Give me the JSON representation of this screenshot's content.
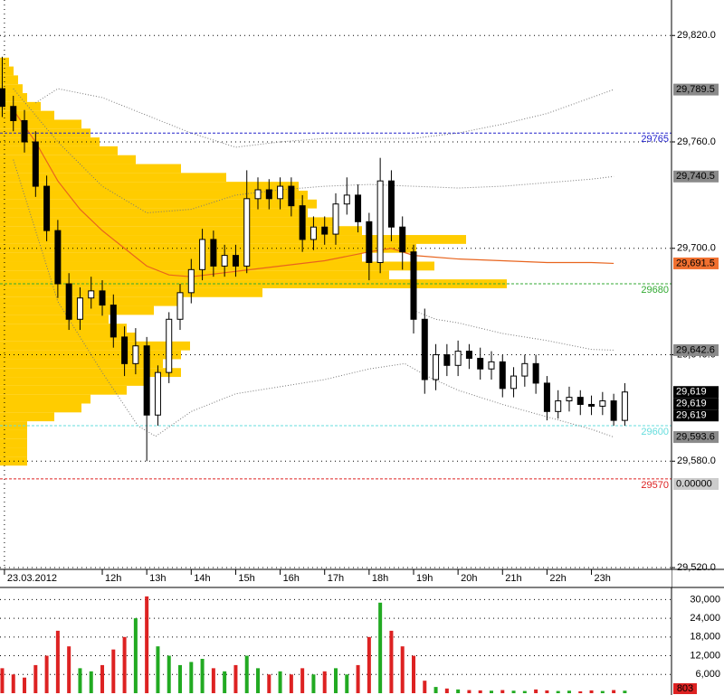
{
  "chart_data": {
    "type": "candlestick",
    "xlim": [
      9.7,
      24.8
    ],
    "ylim": [
      29519,
      29840
    ],
    "yticks": [
      {
        "value": 29520,
        "label": "29,520.0"
      },
      {
        "value": 29580,
        "label": "29,580.0"
      },
      {
        "value": 29640,
        "label": "29,640.0"
      },
      {
        "value": 29700,
        "label": "29,700.0"
      },
      {
        "value": 29760,
        "label": "29,760.0"
      },
      {
        "value": 29820,
        "label": "29,820.0"
      }
    ],
    "xticks": [
      {
        "value": 9.8,
        "label": "23.03.2012"
      },
      {
        "value": 12,
        "label": "12h"
      },
      {
        "value": 13,
        "label": "13h"
      },
      {
        "value": 14,
        "label": "14h"
      },
      {
        "value": 15,
        "label": "15h"
      },
      {
        "value": 16,
        "label": "16h"
      },
      {
        "value": 17,
        "label": "17h"
      },
      {
        "value": 18,
        "label": "18h"
      },
      {
        "value": 19,
        "label": "19h"
      },
      {
        "value": 20,
        "label": "20h"
      },
      {
        "value": 21,
        "label": "21h"
      },
      {
        "value": 22,
        "label": "22h"
      },
      {
        "value": 23,
        "label": "23h"
      }
    ],
    "grid": true,
    "up_color": "#ffffff",
    "down_color": "#000000",
    "x": [
      9.75,
      10,
      10.25,
      10.5,
      10.75,
      11,
      11.25,
      11.5,
      11.75,
      12,
      12.25,
      12.5,
      12.75,
      13,
      13.25,
      13.5,
      13.75,
      14,
      14.25,
      14.5,
      14.75,
      15,
      15.25,
      15.5,
      15.75,
      16,
      16.25,
      16.5,
      16.75,
      17,
      17.25,
      17.5,
      17.75,
      18,
      18.25,
      18.5,
      18.75,
      19,
      19.25,
      19.5,
      19.75,
      20,
      20.25,
      20.5,
      20.75,
      21,
      21.25,
      21.5,
      21.75,
      22,
      22.25,
      22.5,
      22.75,
      23,
      23.25,
      23.5,
      23.75
    ],
    "candles": [
      [
        29790,
        29808,
        29774,
        29780
      ],
      [
        29780,
        29786,
        29766,
        29772
      ],
      [
        29772,
        29778,
        29754,
        29760
      ],
      [
        29760,
        29766,
        29729,
        29735
      ],
      [
        29735,
        29741,
        29704,
        29710
      ],
      [
        29710,
        29716,
        29672,
        29680
      ],
      [
        29680,
        29686,
        29654,
        29660
      ],
      [
        29660,
        29678,
        29654,
        29672
      ],
      [
        29672,
        29684,
        29666,
        29676
      ],
      [
        29676,
        29682,
        29662,
        29668
      ],
      [
        29668,
        29674,
        29644,
        29650
      ],
      [
        29650,
        29656,
        29628,
        29635
      ],
      [
        29635,
        29655,
        29629,
        29645
      ],
      [
        29645,
        29650,
        29580,
        29606
      ],
      [
        29606,
        29634,
        29600,
        29630
      ],
      [
        29630,
        29664,
        29624,
        29660
      ],
      [
        29660,
        29680,
        29654,
        29675
      ],
      [
        29675,
        29694,
        29669,
        29688
      ],
      [
        29688,
        29711,
        29682,
        29705
      ],
      [
        29705,
        29710,
        29684,
        29690
      ],
      [
        29690,
        29702,
        29684,
        29696
      ],
      [
        29696,
        29702,
        29684,
        29690
      ],
      [
        29690,
        29744,
        29686,
        29728
      ],
      [
        29728,
        29740,
        29722,
        29733
      ],
      [
        29733,
        29739,
        29722,
        29728
      ],
      [
        29728,
        29740,
        29722,
        29735
      ],
      [
        29735,
        29740,
        29718,
        29724
      ],
      [
        29724,
        29730,
        29698,
        29705
      ],
      [
        29705,
        29718,
        29699,
        29712
      ],
      [
        29712,
        29718,
        29702,
        29708
      ],
      [
        29708,
        29731,
        29702,
        29725
      ],
      [
        29725,
        29740,
        29719,
        29730
      ],
      [
        29730,
        29736,
        29709,
        29715
      ],
      [
        29715,
        29720,
        29682,
        29692
      ],
      [
        29692,
        29751,
        29686,
        29738
      ],
      [
        29738,
        29744,
        29704,
        29712
      ],
      [
        29712,
        29718,
        29688,
        29698
      ],
      [
        29698,
        29702,
        29652,
        29660
      ],
      [
        29660,
        29666,
        29618,
        29626
      ],
      [
        29626,
        29646,
        29620,
        29640
      ],
      [
        29640,
        29646,
        29628,
        29634
      ],
      [
        29634,
        29648,
        29628,
        29642
      ],
      [
        29642,
        29646,
        29632,
        29638
      ],
      [
        29638,
        29644,
        29626,
        29632
      ],
      [
        29632,
        29642,
        29626,
        29636
      ],
      [
        29636,
        29640,
        29616,
        29621
      ],
      [
        29621,
        29633,
        29616,
        29628
      ],
      [
        29628,
        29640,
        29622,
        29635
      ],
      [
        29635,
        29640,
        29618,
        29624
      ],
      [
        29624,
        29628,
        29603,
        29608
      ],
      [
        29608,
        29620,
        29604,
        29614
      ],
      [
        29614,
        29622,
        29608,
        29616
      ],
      [
        29616,
        29620,
        29606,
        29612
      ],
      [
        29612,
        29617,
        29606,
        29611
      ],
      [
        29611,
        29619,
        29606,
        29614
      ],
      [
        29614,
        29618,
        29600,
        29603
      ],
      [
        29603,
        29624,
        29600,
        29619
      ]
    ],
    "profile": {
      "color": "#ffcc00",
      "levels": [
        29580,
        29585,
        29590,
        29595,
        29600,
        29605,
        29610,
        29615,
        29620,
        29625,
        29630,
        29635,
        29640,
        29645,
        29650,
        29655,
        29660,
        29665,
        29670,
        29675,
        29680,
        29685,
        29690,
        29695,
        29700,
        29705,
        29710,
        29715,
        29720,
        29725,
        29730,
        29735,
        29740,
        29745,
        29750,
        29755,
        29760,
        29765,
        29770,
        29775,
        29780,
        29785,
        29790,
        29795,
        29800,
        29805
      ],
      "volumes": [
        30,
        30,
        30,
        30,
        30,
        60,
        90,
        100,
        140,
        160,
        200,
        180,
        200,
        210,
        150,
        140,
        120,
        170,
        200,
        290,
        560,
        430,
        480,
        400,
        460,
        515,
        400,
        370,
        340,
        350,
        340,
        330,
        250,
        200,
        150,
        130,
        110,
        100,
        90,
        60,
        45,
        30,
        25,
        20,
        15,
        10
      ]
    },
    "bands": [
      {
        "color": "#777777",
        "dash": "1 2",
        "x": [
          10.5,
          11,
          12,
          13,
          14,
          15,
          16,
          17,
          18,
          19,
          20,
          21,
          22,
          23,
          23.5
        ],
        "values": [
          29782,
          29790,
          29785,
          29775,
          29765,
          29757,
          29760,
          29762,
          29762,
          29762,
          29765,
          29770,
          29776,
          29785,
          29789.5
        ]
      },
      {
        "color": "#777777",
        "dash": "1 2",
        "x": [
          10,
          11,
          12,
          13,
          14,
          15,
          16,
          17,
          18,
          19,
          20,
          21,
          22,
          23,
          23.5
        ],
        "values": [
          29790,
          29760,
          29735,
          29720,
          29722,
          29730,
          29733,
          29735,
          29736,
          29735,
          29734,
          29735,
          29737,
          29739,
          29740.5
        ]
      },
      {
        "color": "#e8641e",
        "dash": "",
        "x": [
          10,
          10.5,
          11,
          11.5,
          12,
          12.5,
          13,
          13.5,
          14,
          15,
          16,
          17,
          18,
          18.5,
          19,
          20,
          21,
          22,
          23,
          23.5
        ],
        "values": [
          29778,
          29760,
          29738,
          29722,
          29710,
          29700,
          29690,
          29685,
          29684,
          29687,
          29690,
          29693,
          29698,
          29700,
          29696,
          29694,
          29693,
          29692,
          29692,
          29691.5
        ]
      },
      {
        "color": "#777777",
        "dash": "1 2",
        "x": [
          19,
          19.5,
          20,
          21,
          22,
          23,
          23.5
        ],
        "values": [
          29665,
          29660,
          29658,
          29652,
          29648,
          29643,
          29642.6
        ]
      },
      {
        "color": "#777777",
        "dash": "1 2",
        "x": [
          10,
          11,
          12,
          12.8,
          13.2,
          14,
          15,
          16,
          17,
          18,
          18.8,
          19.3,
          20,
          21,
          22,
          23,
          23.5
        ],
        "values": [
          29750,
          29670,
          29630,
          29600,
          29594,
          29608,
          29618,
          29622,
          29626,
          29632,
          29635,
          29628,
          29620,
          29612,
          29605,
          29598,
          29593.6
        ]
      }
    ],
    "levels": [
      {
        "value": 29765,
        "color": "#2222cc"
      },
      {
        "value": 29680,
        "color": "#33aa33"
      },
      {
        "value": 29600,
        "color": "#66dddd"
      },
      {
        "value": 29570,
        "color": "#dd2222"
      }
    ],
    "price_tags": [
      {
        "value": 29789.5,
        "label": "29,789.5",
        "bg": "#8a8a8a",
        "fg": "#000000"
      },
      {
        "value": 29740.5,
        "label": "29,740.5",
        "bg": "#8a8a8a",
        "fg": "#000000"
      },
      {
        "value": 29691.5,
        "label": "29,691.5",
        "bg": "#f07030",
        "fg": "#000000"
      },
      {
        "value": 29642.6,
        "label": "29,642.6",
        "bg": "#8a8a8a",
        "fg": "#000000"
      },
      {
        "value": 29619,
        "label": "29,619",
        "bg": "#000000",
        "fg": "#ffffff"
      },
      {
        "value": 29619,
        "label": "29,619",
        "bg": "#000000",
        "fg": "#ffffff"
      },
      {
        "value": 29619,
        "label": "29,619",
        "bg": "#000000",
        "fg": "#ffffff"
      },
      {
        "value": 29593.6,
        "label": "29,593.6",
        "bg": "#8a8a8a",
        "fg": "#000000"
      }
    ],
    "info_tag": {
      "label": "0.00000",
      "bg": "#cccccc",
      "fg": "#000000"
    },
    "volume": {
      "ylim": [
        0,
        33000
      ],
      "yticks": [
        {
          "value": 6000,
          "label": "6,000"
        },
        {
          "value": 12000,
          "label": "12,000"
        },
        {
          "value": 18000,
          "label": "18,000"
        },
        {
          "value": 24000,
          "label": "24,000"
        },
        {
          "value": 30000,
          "label": "30,000"
        }
      ],
      "up_color": "#22aa22",
      "down_color": "#dd2222",
      "values": [
        8000,
        6000,
        5000,
        9000,
        12000,
        20000,
        15000,
        8000,
        7000,
        9000,
        14000,
        18000,
        24000,
        31000,
        15000,
        12000,
        9000,
        10000,
        11000,
        8000,
        7000,
        9000,
        12000,
        8000,
        6000,
        7000,
        6000,
        8000,
        6000,
        7000,
        8000,
        6000,
        9000,
        18000,
        29000,
        20000,
        15000,
        12000,
        4000,
        2000,
        1500,
        1200,
        1000,
        900,
        800,
        1000,
        800,
        700,
        1200,
        900,
        700,
        800,
        600,
        900,
        700,
        1000,
        803
      ],
      "last": {
        "value": 803,
        "label": "803",
        "bg": "#dd2222",
        "fg": "#000000"
      }
    }
  }
}
